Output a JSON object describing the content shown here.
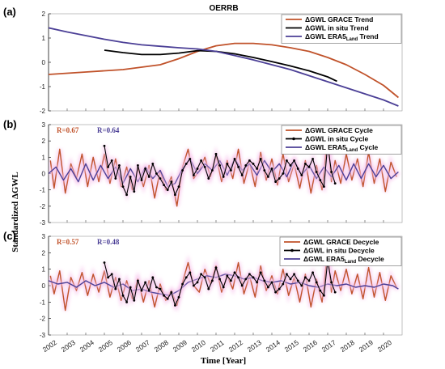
{
  "colors": {
    "grace": "#c0522a",
    "insitu": "#000000",
    "era5": "#4b3f96",
    "shade": "#f7c6ec"
  },
  "ylabel": "Standardized ΔGWL",
  "xlabel": "Time [Year]",
  "chart_data": [
    {
      "type": "line",
      "panel_label": "(a)",
      "title": "OERRB",
      "xlim": [
        2002,
        2021
      ],
      "ylim": [
        -2,
        2
      ],
      "yticks": [
        -2,
        -1,
        0,
        1,
        2
      ],
      "legend_position": "top-right",
      "series": [
        {
          "name": "ΔGWL GRACE Trend",
          "key": "grace",
          "x": [
            2002,
            2004,
            2006,
            2008,
            2009,
            2010,
            2011,
            2012,
            2013,
            2014,
            2015,
            2016,
            2017,
            2018,
            2019,
            2020,
            2020.8
          ],
          "y": [
            -0.5,
            -0.4,
            -0.3,
            -0.1,
            0.15,
            0.45,
            0.68,
            0.78,
            0.78,
            0.72,
            0.6,
            0.45,
            0.2,
            -0.1,
            -0.5,
            -0.95,
            -1.45
          ]
        },
        {
          "name": "ΔGWL in situ Trend",
          "key": "insitu",
          "x": [
            2005,
            2006,
            2007,
            2008,
            2009,
            2010,
            2011,
            2012,
            2013,
            2014,
            2015,
            2016,
            2017,
            2017.5
          ],
          "y": [
            0.5,
            0.4,
            0.32,
            0.32,
            0.38,
            0.48,
            0.45,
            0.35,
            0.2,
            0.03,
            -0.15,
            -0.35,
            -0.6,
            -0.78
          ]
        },
        {
          "name": "ΔGWL ERA5Land Trend",
          "key": "era5",
          "x": [
            2002,
            2003,
            2004,
            2005,
            2006,
            2007,
            2008,
            2009,
            2010,
            2011,
            2012,
            2013,
            2014,
            2015,
            2016,
            2017,
            2018,
            2019,
            2020,
            2020.8
          ],
          "y": [
            1.42,
            1.25,
            1.1,
            0.95,
            0.82,
            0.72,
            0.66,
            0.6,
            0.55,
            0.45,
            0.28,
            0.1,
            -0.1,
            -0.3,
            -0.55,
            -0.8,
            -1.05,
            -1.3,
            -1.55,
            -1.8
          ]
        }
      ]
    },
    {
      "type": "line",
      "panel_label": "(b)",
      "xlim": [
        2002,
        2021
      ],
      "ylim": [
        -3,
        3
      ],
      "yticks": [
        -3,
        -2,
        -1,
        0,
        1,
        2,
        3
      ],
      "legend_position": "top-right",
      "annotations": [
        {
          "text": "R=0.67",
          "key": "grace"
        },
        {
          "text": "R=0.64",
          "key": "era5"
        }
      ],
      "series": [
        {
          "name": "ΔGWL GRACE Cycle",
          "key": "grace",
          "x": [
            2002.1,
            2002.3,
            2002.6,
            2002.9,
            2003.2,
            2003.5,
            2003.8,
            2004.1,
            2004.4,
            2004.7,
            2005.0,
            2005.3,
            2005.6,
            2005.9,
            2006.2,
            2006.5,
            2006.8,
            2007.1,
            2007.4,
            2007.7,
            2008.0,
            2008.3,
            2008.6,
            2008.9,
            2009.2,
            2009.5,
            2009.8,
            2010.1,
            2010.4,
            2010.7,
            2011.0,
            2011.3,
            2011.6,
            2011.9,
            2012.2,
            2012.5,
            2012.8,
            2013.1,
            2013.4,
            2013.7,
            2014.0,
            2014.3,
            2014.6,
            2014.9,
            2015.2,
            2015.5,
            2015.8,
            2016.1,
            2016.4,
            2016.7,
            2017.0,
            2017.2,
            2017.4,
            2017.7,
            2018.0,
            2018.3,
            2018.6,
            2018.9,
            2019.2,
            2019.5,
            2019.8,
            2020.1,
            2020.4,
            2020.7
          ],
          "y": [
            0.8,
            -0.9,
            1.5,
            -1.2,
            0.6,
            -0.3,
            1.2,
            -0.8,
            1.0,
            -0.5,
            1.2,
            -0.6,
            0.9,
            -0.8,
            0.4,
            -1.0,
            0.3,
            -0.8,
            0.5,
            -1.5,
            0.2,
            -1.0,
            -0.2,
            -2.0,
            0.4,
            1.5,
            -0.3,
            0.2,
            1.0,
            -0.2,
            1.1,
            -0.5,
            0.8,
            -0.3,
            1.5,
            -0.6,
            0.7,
            -0.8,
            1.3,
            -0.4,
            0.9,
            -0.7,
            1.2,
            -0.5,
            0.6,
            -0.9,
            0.8,
            -1.2,
            0.5,
            -1.0,
            2.3,
            -0.5,
            0.8,
            -0.6,
            1.2,
            -0.4,
            0.9,
            -0.8,
            1.3,
            -0.6,
            0.9,
            -1.1,
            0.7,
            -0.2
          ]
        },
        {
          "name": "ΔGWL in situ Cycle",
          "key": "insitu",
          "x": [
            2005.0,
            2005.2,
            2005.4,
            2005.6,
            2005.8,
            2006.0,
            2006.2,
            2006.4,
            2006.6,
            2006.8,
            2007.0,
            2007.2,
            2007.4,
            2007.6,
            2007.8,
            2008.0,
            2008.2,
            2008.4,
            2008.6,
            2008.8,
            2009.0,
            2009.2,
            2009.4,
            2009.6,
            2009.8,
            2010.0,
            2010.2,
            2010.4,
            2010.6,
            2010.8,
            2011.0,
            2011.2,
            2011.4,
            2011.6,
            2011.8,
            2012.0,
            2012.2,
            2012.4,
            2012.6,
            2012.8,
            2013.0,
            2013.2,
            2013.4,
            2013.6,
            2013.8,
            2014.0,
            2014.2,
            2014.4,
            2014.6,
            2014.8,
            2015.0,
            2015.2,
            2015.4,
            2015.6,
            2015.8,
            2016.0,
            2016.2,
            2016.4,
            2016.6,
            2016.8,
            2017.0,
            2017.2,
            2017.4
          ],
          "y": [
            1.7,
            0.4,
            0.8,
            -0.3,
            0.5,
            -0.8,
            -1.3,
            -0.2,
            -1.1,
            0.5,
            -0.4,
            0.3,
            -0.2,
            0.6,
            0.0,
            -0.3,
            -0.7,
            -1.0,
            -0.5,
            -1.3,
            -0.8,
            0.2,
            0.6,
            0.9,
            -0.1,
            0.3,
            0.8,
            0.4,
            -0.3,
            0.2,
            1.2,
            0.5,
            -0.2,
            0.6,
            0.2,
            0.9,
            0.4,
            -0.1,
            0.5,
            0.8,
            0.6,
            0.3,
            0.9,
            0.2,
            -0.2,
            0.3,
            -0.5,
            -0.3,
            0.0,
            0.8,
            0.5,
            0.8,
            0.3,
            -0.1,
            0.6,
            0.4,
            0.9,
            0.1,
            -0.4,
            -0.8,
            1.8,
            0.1,
            -0.6
          ]
        },
        {
          "name": "ΔGWL ERA5Land Cycle",
          "key": "era5",
          "x": [
            2002.0,
            2002.4,
            2002.8,
            2003.2,
            2003.6,
            2004.0,
            2004.4,
            2004.8,
            2005.2,
            2005.6,
            2006.0,
            2006.4,
            2006.8,
            2007.2,
            2007.6,
            2008.0,
            2008.4,
            2008.8,
            2009.2,
            2009.6,
            2010.0,
            2010.4,
            2010.8,
            2011.2,
            2011.6,
            2012.0,
            2012.4,
            2012.8,
            2013.2,
            2013.6,
            2014.0,
            2014.4,
            2014.8,
            2015.2,
            2015.6,
            2016.0,
            2016.4,
            2016.8,
            2017.2,
            2017.6,
            2018.0,
            2018.4,
            2018.8,
            2019.2,
            2019.6,
            2020.0,
            2020.4,
            2020.8
          ],
          "y": [
            0.0,
            0.4,
            -0.4,
            0.3,
            -0.5,
            0.6,
            -0.4,
            0.5,
            -0.3,
            0.4,
            -0.6,
            0.3,
            -0.5,
            0.4,
            -0.3,
            0.2,
            -0.8,
            -0.6,
            0.3,
            0.9,
            0.0,
            0.6,
            0.2,
            0.8,
            -0.1,
            0.9,
            0.2,
            0.6,
            -0.1,
            0.8,
            0.1,
            0.6,
            -0.2,
            0.8,
            -0.1,
            0.5,
            -0.3,
            0.4,
            -0.2,
            0.5,
            -0.4,
            0.6,
            -0.3,
            0.6,
            -0.2,
            0.5,
            -0.3,
            0.1
          ]
        }
      ]
    },
    {
      "type": "line",
      "panel_label": "(c)",
      "xlim": [
        2002,
        2021
      ],
      "ylim": [
        -3,
        3
      ],
      "yticks": [
        -3,
        -2,
        -1,
        0,
        1,
        2,
        3
      ],
      "xticks": [
        2002,
        2003,
        2004,
        2005,
        2006,
        2007,
        2008,
        2009,
        2010,
        2011,
        2012,
        2013,
        2014,
        2015,
        2016,
        2017,
        2018,
        2019,
        2020
      ],
      "legend_position": "top-right",
      "annotations": [
        {
          "text": "R=0.57",
          "key": "grace"
        },
        {
          "text": "R=0.48",
          "key": "era5"
        }
      ],
      "series": [
        {
          "name": "ΔGWL GRACE Decycle",
          "key": "grace",
          "x": [
            2002.1,
            2002.3,
            2002.6,
            2002.9,
            2003.2,
            2003.5,
            2003.8,
            2004.1,
            2004.4,
            2004.7,
            2005.0,
            2005.3,
            2005.6,
            2005.9,
            2006.2,
            2006.5,
            2006.8,
            2007.1,
            2007.4,
            2007.7,
            2008.0,
            2008.3,
            2008.6,
            2008.9,
            2009.2,
            2009.5,
            2009.8,
            2010.1,
            2010.4,
            2010.7,
            2011.0,
            2011.3,
            2011.6,
            2011.9,
            2012.2,
            2012.5,
            2012.8,
            2013.1,
            2013.4,
            2013.7,
            2014.0,
            2014.3,
            2014.6,
            2014.9,
            2015.2,
            2015.5,
            2015.8,
            2016.1,
            2016.4,
            2016.7,
            2017.0,
            2017.2,
            2017.4,
            2017.7,
            2018.0,
            2018.3,
            2018.6,
            2018.9,
            2019.2,
            2019.5,
            2019.8,
            2020.1,
            2020.4,
            2020.7
          ],
          "y": [
            0.6,
            -0.5,
            0.9,
            -1.5,
            0.5,
            -0.3,
            0.8,
            -0.6,
            0.7,
            -0.4,
            0.9,
            -0.7,
            0.5,
            -0.9,
            0.3,
            -0.8,
            0.4,
            -1.0,
            0.3,
            -1.3,
            0.1,
            -0.9,
            -0.3,
            -1.2,
            0.2,
            1.4,
            0.0,
            -0.4,
            1.0,
            0.1,
            1.2,
            -0.4,
            0.6,
            -0.2,
            1.4,
            -0.5,
            0.6,
            -0.7,
            1.2,
            -0.3,
            0.6,
            -0.5,
            1.0,
            -0.6,
            0.5,
            -1.0,
            0.7,
            -1.3,
            0.4,
            -1.0,
            2.1,
            -0.4,
            0.9,
            -0.3,
            1.0,
            -0.5,
            0.7,
            -0.8,
            1.1,
            -0.7,
            0.8,
            -0.9,
            0.6,
            -0.1
          ]
        },
        {
          "name": "ΔGWL in situ Decycle",
          "key": "insitu",
          "x": [
            2005.0,
            2005.2,
            2005.4,
            2005.6,
            2005.8,
            2006.0,
            2006.2,
            2006.4,
            2006.6,
            2006.8,
            2007.0,
            2007.2,
            2007.4,
            2007.6,
            2007.8,
            2008.0,
            2008.2,
            2008.4,
            2008.6,
            2008.8,
            2009.0,
            2009.2,
            2009.4,
            2009.6,
            2009.8,
            2010.0,
            2010.2,
            2010.4,
            2010.6,
            2010.8,
            2011.0,
            2011.2,
            2011.4,
            2011.6,
            2011.8,
            2012.0,
            2012.2,
            2012.4,
            2012.6,
            2012.8,
            2013.0,
            2013.2,
            2013.4,
            2013.6,
            2013.8,
            2014.0,
            2014.2,
            2014.4,
            2014.6,
            2014.8,
            2015.0,
            2015.2,
            2015.4,
            2015.6,
            2015.8,
            2016.0,
            2016.2,
            2016.4,
            2016.6,
            2016.8,
            2017.0,
            2017.2,
            2017.4
          ],
          "y": [
            1.4,
            0.5,
            0.7,
            -0.2,
            0.4,
            -0.6,
            -1.0,
            -0.1,
            -0.9,
            0.3,
            -0.3,
            0.2,
            -0.3,
            0.5,
            -0.1,
            -0.2,
            -0.6,
            -0.8,
            -0.4,
            -1.2,
            -0.7,
            0.1,
            0.5,
            0.8,
            0.0,
            0.2,
            0.7,
            0.5,
            -0.2,
            0.3,
            1.1,
            0.4,
            -0.1,
            0.6,
            0.3,
            0.8,
            0.5,
            0.0,
            0.4,
            0.7,
            0.5,
            0.2,
            0.8,
            0.3,
            -0.1,
            0.2,
            -0.4,
            -0.2,
            0.1,
            0.7,
            0.4,
            0.7,
            0.3,
            0.0,
            0.5,
            0.3,
            0.8,
            0.2,
            -0.3,
            -0.6,
            1.5,
            0.2,
            -0.4
          ]
        },
        {
          "name": "ΔGWL ERA5Land Decycle",
          "key": "era5",
          "x": [
            2002.0,
            2002.5,
            2003.0,
            2003.5,
            2004.0,
            2004.5,
            2005.0,
            2005.5,
            2006.0,
            2006.5,
            2007.0,
            2007.5,
            2008.0,
            2008.5,
            2009.0,
            2009.5,
            2010.0,
            2010.5,
            2011.0,
            2011.5,
            2012.0,
            2012.5,
            2013.0,
            2013.5,
            2014.0,
            2014.5,
            2015.0,
            2015.5,
            2016.0,
            2016.5,
            2017.0,
            2017.5,
            2018.0,
            2018.5,
            2019.0,
            2019.5,
            2020.0,
            2020.5,
            2020.8
          ],
          "y": [
            0.3,
            0.1,
            0.2,
            -0.1,
            0.3,
            0.0,
            0.2,
            -0.1,
            0.1,
            -0.3,
            -0.2,
            -0.4,
            -0.5,
            -0.6,
            -0.3,
            0.2,
            0.4,
            0.6,
            0.5,
            0.7,
            0.6,
            0.4,
            0.5,
            0.3,
            0.2,
            0.3,
            0.1,
            0.2,
            0.0,
            -0.1,
            0.1,
            0.0,
            0.1,
            -0.1,
            0.0,
            -0.1,
            0.1,
            0.0,
            -0.2
          ]
        }
      ]
    }
  ]
}
